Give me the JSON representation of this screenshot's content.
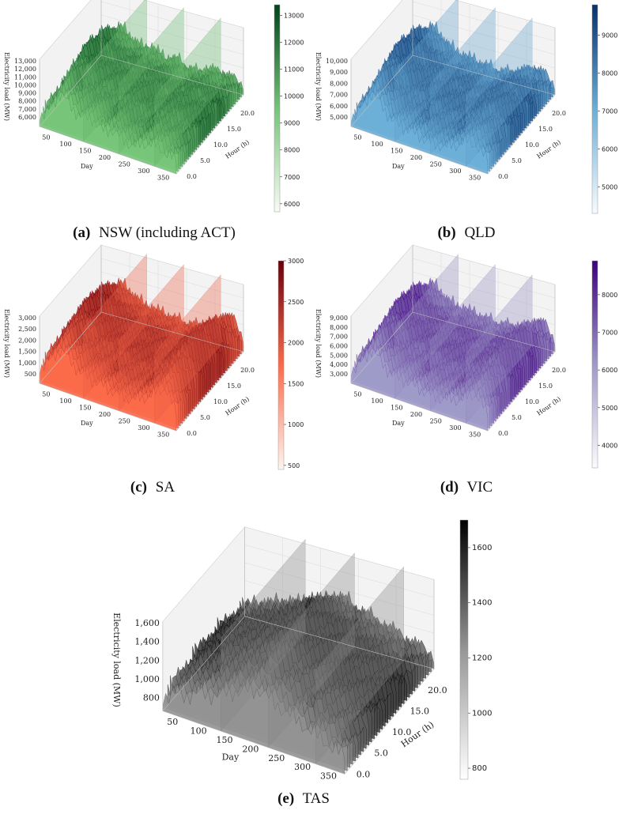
{
  "chart_data": [
    {
      "type": "surface3d",
      "region": "NSW (including ACT)",
      "caption_letter": "(a)",
      "caption_text": "NSW (including ACT)",
      "xlabel": "Day",
      "ylabel": "Hour (h)",
      "zlabel": "Electricity load (MW)",
      "x_ticks": [
        "50",
        "100",
        "150",
        "200",
        "250",
        "300",
        "350"
      ],
      "y_ticks": [
        "0.0",
        "5.0",
        "10.0",
        "15.0",
        "20.0"
      ],
      "z_ticks": [
        "6,000",
        "7,000",
        "8,000",
        "9,000",
        "10,000",
        "11,000",
        "12,000",
        "13,000"
      ],
      "zlim": [
        6000,
        13000
      ],
      "colormap": "Greens",
      "cmap_low": "#f7fcf5",
      "cmap_mid": "#74c476",
      "cmap_high": "#00441b",
      "colorbar_ticks": [
        "6000",
        "7000",
        "8000",
        "9000",
        "10000",
        "11000",
        "12000",
        "13000"
      ],
      "colorbar_range": [
        5700,
        13400
      ],
      "ridge_profile": [
        0.25,
        0.45,
        0.95,
        0.7,
        0.55,
        0.6,
        0.4,
        0.5,
        0.35,
        0.3,
        0.45,
        0.5,
        0.4,
        0.3
      ]
    },
    {
      "type": "surface3d",
      "region": "QLD",
      "caption_letter": "(b)",
      "caption_text": "QLD",
      "xlabel": "Day",
      "ylabel": "Hour (h)",
      "zlabel": "Electricity load (MW)",
      "x_ticks": [
        "50",
        "100",
        "150",
        "200",
        "250",
        "300",
        "350"
      ],
      "y_ticks": [
        "0.0",
        "5.0",
        "10.0",
        "15.0",
        "20.0"
      ],
      "z_ticks": [
        "5,000",
        "6,000",
        "7,000",
        "8,000",
        "9,000",
        "10,000"
      ],
      "zlim": [
        5000,
        10000
      ],
      "colormap": "Blues",
      "cmap_low": "#f7fbff",
      "cmap_mid": "#6baed6",
      "cmap_high": "#08306b",
      "colorbar_ticks": [
        "5000",
        "6000",
        "7000",
        "8000",
        "9000"
      ],
      "colorbar_range": [
        4300,
        9800
      ],
      "ridge_profile": [
        0.2,
        0.5,
        0.95,
        0.7,
        0.45,
        0.4,
        0.35,
        0.3,
        0.25,
        0.3,
        0.4,
        0.6,
        0.55,
        0.3
      ]
    },
    {
      "type": "surface3d",
      "region": "SA",
      "caption_letter": "(c)",
      "caption_text": "SA",
      "xlabel": "Day",
      "ylabel": "Hour (h)",
      "zlabel": "Electricity load (MW)",
      "x_ticks": [
        "50",
        "100",
        "150",
        "200",
        "250",
        "300",
        "350"
      ],
      "y_ticks": [
        "0.0",
        "5.0",
        "10.0",
        "15.0",
        "20.0"
      ],
      "z_ticks": [
        "500",
        "1,000",
        "1,500",
        "2,000",
        "2,500",
        "3,000"
      ],
      "zlim": [
        500,
        3000
      ],
      "colormap": "Reds",
      "cmap_low": "#fff5f0",
      "cmap_mid": "#fb6a4a",
      "cmap_high": "#67000d",
      "colorbar_ticks": [
        "500",
        "1000",
        "1500",
        "2000",
        "2500",
        "3000"
      ],
      "colorbar_range": [
        450,
        3000
      ],
      "ridge_profile": [
        0.35,
        0.6,
        0.95,
        0.75,
        0.55,
        0.5,
        0.45,
        0.4,
        0.35,
        0.4,
        0.5,
        0.7,
        0.9,
        0.4
      ]
    },
    {
      "type": "surface3d",
      "region": "VIC",
      "caption_letter": "(d)",
      "caption_text": "VIC",
      "xlabel": "Day",
      "ylabel": "Hour (h)",
      "zlabel": "Electricity load (MW)",
      "x_ticks": [
        "50",
        "100",
        "150",
        "200",
        "250",
        "300",
        "350"
      ],
      "y_ticks": [
        "0.0",
        "5.0",
        "10.0",
        "15.0",
        "20.0"
      ],
      "z_ticks": [
        "3,000",
        "4,000",
        "5,000",
        "6,000",
        "7,000",
        "8,000",
        "9,000"
      ],
      "zlim": [
        3000,
        9000
      ],
      "colormap": "Purples",
      "cmap_low": "#fcfbfd",
      "cmap_mid": "#9e9ac8",
      "cmap_high": "#3f007d",
      "colorbar_ticks": [
        "4000",
        "5000",
        "6000",
        "7000",
        "8000"
      ],
      "colorbar_range": [
        3400,
        8900
      ],
      "ridge_profile": [
        0.3,
        0.55,
        0.95,
        0.7,
        0.5,
        0.5,
        0.45,
        0.4,
        0.35,
        0.4,
        0.45,
        0.6,
        0.75,
        0.35
      ]
    },
    {
      "type": "surface3d",
      "region": "TAS",
      "caption_letter": "(e)",
      "caption_text": "TAS",
      "xlabel": "Day",
      "ylabel": "Hour (h)",
      "zlabel": "Electricity load (MW)",
      "x_ticks": [
        "50",
        "100",
        "150",
        "200",
        "250",
        "300",
        "350"
      ],
      "y_ticks": [
        "0.0",
        "5.0",
        "10.0",
        "15.0",
        "20.0"
      ],
      "z_ticks": [
        "800",
        "1,000",
        "1,200",
        "1,400",
        "1,600"
      ],
      "zlim": [
        800,
        1600
      ],
      "colormap": "Greys",
      "cmap_low": "#ffffff",
      "cmap_mid": "#969696",
      "cmap_high": "#000000",
      "colorbar_ticks": [
        "800",
        "1000",
        "1200",
        "1400",
        "1600"
      ],
      "colorbar_range": [
        760,
        1700
      ],
      "ridge_profile": [
        0.25,
        0.35,
        0.45,
        0.55,
        0.6,
        0.75,
        0.85,
        0.95,
        0.8,
        0.7,
        0.6,
        0.5,
        0.4,
        0.3
      ]
    }
  ]
}
